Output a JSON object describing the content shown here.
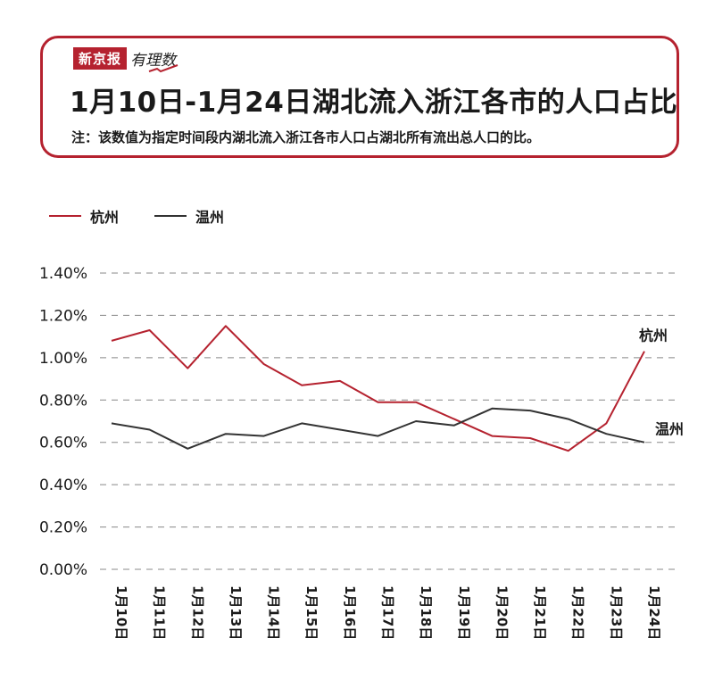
{
  "header": {
    "brand_name": "新京报",
    "brand_column": "有理数",
    "title": "1月10日-1月24日湖北流入浙江各市的人口占比",
    "note": "注：该数值为指定时间段内湖北流入浙江各市人口占湖北所有流出总人口的比。"
  },
  "colors": {
    "accent": "#b5222f",
    "hangzhou": "#b5222f",
    "wenzhou": "#333333",
    "grid": "#888888"
  },
  "chart_data": {
    "type": "line",
    "title": "1月10日-1月24日湖北流入浙江各市的人口占比",
    "xlabel": "",
    "ylabel": "",
    "ylim": [
      0,
      1.4
    ],
    "yticks": [
      0,
      0.2,
      0.4,
      0.6,
      0.8,
      1.0,
      1.2,
      1.4
    ],
    "ytick_labels": [
      "0.00%",
      "0.20%",
      "0.40%",
      "0.60%",
      "0.80%",
      "1.00%",
      "1.20%",
      "1.40%"
    ],
    "grid": true,
    "legend_position": "top-left",
    "categories": [
      "1月10日",
      "1月11日",
      "1月12日",
      "1月13日",
      "1月14日",
      "1月15日",
      "1月16日",
      "1月17日",
      "1月18日",
      "1月19日",
      "1月20日",
      "1月21日",
      "1月22日",
      "1月23日",
      "1月24日"
    ],
    "series": [
      {
        "name": "杭州",
        "end_label": "杭州",
        "color": "#b5222f",
        "values": [
          1.08,
          1.13,
          0.95,
          1.15,
          0.97,
          0.87,
          0.89,
          0.79,
          0.79,
          0.71,
          0.63,
          0.62,
          0.56,
          0.69,
          1.03
        ]
      },
      {
        "name": "温州",
        "end_label": "温州",
        "color": "#333333",
        "values": [
          0.69,
          0.66,
          0.57,
          0.64,
          0.63,
          0.69,
          0.66,
          0.63,
          0.7,
          0.68,
          0.76,
          0.75,
          0.71,
          0.64,
          0.6
        ]
      }
    ]
  }
}
